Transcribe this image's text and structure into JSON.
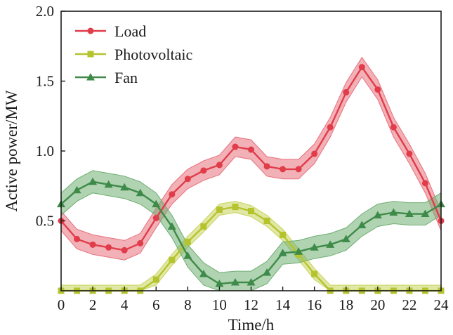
{
  "chart_data": {
    "type": "line",
    "xlabel": "Time/h",
    "ylabel": "Active power/MW",
    "xlim": [
      0,
      24
    ],
    "ylim": [
      0,
      2.0
    ],
    "x_ticks": [
      0,
      2,
      4,
      6,
      8,
      10,
      12,
      14,
      16,
      18,
      20,
      22,
      24
    ],
    "x_tick_labels": [
      "0",
      "2",
      "4",
      "6",
      "8",
      "10",
      "12",
      "14",
      "16",
      "18",
      "20",
      "22",
      "24"
    ],
    "y_ticks": [
      0.5,
      1.0,
      1.5,
      2.0
    ],
    "y_tick_labels": [
      "0.5",
      "1.0",
      "1.5",
      "2.0"
    ],
    "grid": false,
    "legend_position": "top-left",
    "x": [
      0,
      1,
      2,
      3,
      4,
      5,
      6,
      7,
      8,
      9,
      10,
      11,
      12,
      13,
      14,
      15,
      16,
      17,
      18,
      19,
      20,
      21,
      22,
      23,
      24
    ],
    "series": [
      {
        "name": "Load",
        "marker": "circle",
        "color": "#e03c4a",
        "band_color": "#e8707c",
        "values": [
          0.5,
          0.37,
          0.33,
          0.31,
          0.29,
          0.34,
          0.52,
          0.69,
          0.8,
          0.86,
          0.9,
          1.03,
          1.01,
          0.89,
          0.87,
          0.87,
          0.98,
          1.17,
          1.42,
          1.6,
          1.44,
          1.17,
          0.98,
          0.77,
          0.5
        ],
        "band_half_width": 0.07
      },
      {
        "name": "Photovoltaic",
        "marker": "square",
        "color": "#b5c42e",
        "band_color": "#c8d45a",
        "values": [
          0,
          0,
          0,
          0,
          0,
          0,
          0.08,
          0.22,
          0.35,
          0.46,
          0.58,
          0.6,
          0.57,
          0.5,
          0.4,
          0.26,
          0.12,
          0,
          0,
          0,
          0,
          0,
          0,
          0,
          0
        ],
        "band_half_width": 0.04
      },
      {
        "name": "Fan",
        "marker": "triangle",
        "color": "#3e8a48",
        "band_color": "#6fae72",
        "values": [
          0.62,
          0.72,
          0.78,
          0.76,
          0.74,
          0.7,
          0.62,
          0.46,
          0.25,
          0.12,
          0.05,
          0.06,
          0.06,
          0.13,
          0.27,
          0.28,
          0.31,
          0.33,
          0.37,
          0.47,
          0.54,
          0.56,
          0.55,
          0.55,
          0.62
        ],
        "band_half_width": 0.08
      }
    ]
  }
}
